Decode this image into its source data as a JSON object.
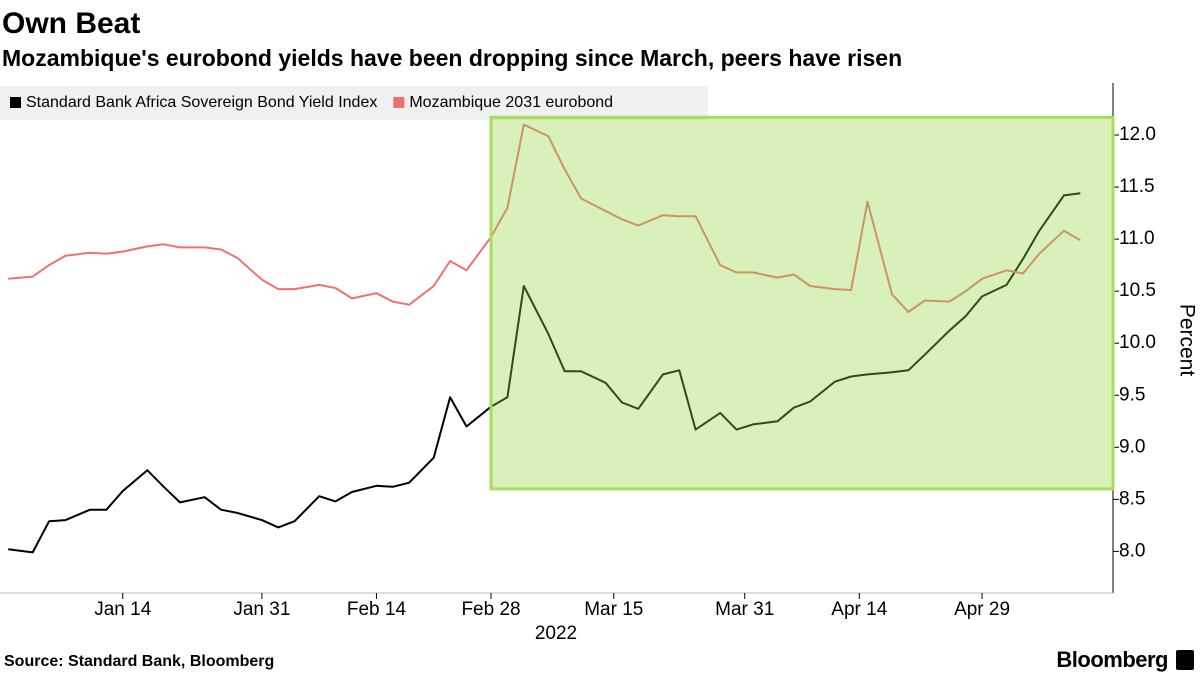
{
  "chart_data": {
    "type": "line",
    "title": "Own Beat",
    "subtitle": "Mozambique's eurobond yields have been dropping since March, peers have risen",
    "source": "Source: Standard Bank, Bloomberg",
    "brand": "Bloomberg",
    "ylabel": "Percent",
    "x_sublabel": "2022",
    "legend": "top-left",
    "x": [
      "2021-12-31",
      "2022-01-03",
      "2022-01-05",
      "2022-01-07",
      "2022-01-10",
      "2022-01-12",
      "2022-01-14",
      "2022-01-17",
      "2022-01-19",
      "2022-01-21",
      "2022-01-24",
      "2022-01-26",
      "2022-01-28",
      "2022-01-31",
      "2022-02-02",
      "2022-02-04",
      "2022-02-07",
      "2022-02-09",
      "2022-02-11",
      "2022-02-14",
      "2022-02-16",
      "2022-02-18",
      "2022-02-21",
      "2022-02-23",
      "2022-02-25",
      "2022-02-28",
      "2022-03-02",
      "2022-03-04",
      "2022-03-07",
      "2022-03-09",
      "2022-03-11",
      "2022-03-14",
      "2022-03-16",
      "2022-03-18",
      "2022-03-21",
      "2022-03-23",
      "2022-03-25",
      "2022-03-28",
      "2022-03-30",
      "2022-04-01",
      "2022-04-04",
      "2022-04-06",
      "2022-04-08",
      "2022-04-11",
      "2022-04-13",
      "2022-04-15",
      "2022-04-18",
      "2022-04-20",
      "2022-04-22",
      "2022-04-25",
      "2022-04-27",
      "2022-04-29",
      "2022-05-02",
      "2022-05-04",
      "2022-05-06",
      "2022-05-09",
      "2022-05-11"
    ],
    "series": [
      {
        "name": "Standard Bank Africa Sovereign Bond Yield Index",
        "color": "#000000",
        "values": [
          8.02,
          7.99,
          8.29,
          8.3,
          8.4,
          8.4,
          8.58,
          8.78,
          8.62,
          8.47,
          8.52,
          8.4,
          8.37,
          8.3,
          8.23,
          8.29,
          8.53,
          8.48,
          8.57,
          8.63,
          8.62,
          8.66,
          8.9,
          9.48,
          9.2,
          9.39,
          9.48,
          10.55,
          10.09,
          9.73,
          9.73,
          9.62,
          9.43,
          9.37,
          9.7,
          9.74,
          9.17,
          9.33,
          9.17,
          9.22,
          9.25,
          9.38,
          9.44,
          9.63,
          9.68,
          9.7,
          9.72,
          9.74,
          9.89,
          10.12,
          10.26,
          10.45,
          10.56,
          10.81,
          11.08,
          11.42,
          11.44
        ]
      },
      {
        "name": "Mozambique 2031 eurobond",
        "color": "#f07070",
        "values": [
          10.62,
          10.64,
          10.75,
          10.84,
          10.87,
          10.86,
          10.88,
          10.93,
          10.95,
          10.92,
          10.92,
          10.9,
          10.82,
          10.61,
          10.52,
          10.52,
          10.56,
          10.53,
          10.43,
          10.48,
          10.4,
          10.37,
          10.55,
          10.79,
          10.7,
          11.02,
          11.3,
          12.1,
          11.99,
          11.67,
          11.39,
          11.27,
          11.19,
          11.13,
          11.23,
          11.22,
          11.22,
          10.75,
          10.68,
          10.68,
          10.63,
          10.66,
          10.55,
          10.52,
          10.51,
          11.36,
          10.47,
          10.3,
          10.41,
          10.4,
          10.5,
          10.62,
          10.7,
          10.67,
          10.86,
          11.08,
          10.99
        ]
      }
    ],
    "xlim": [
      "2021-12-30",
      "2022-05-15"
    ],
    "xticks": [
      {
        "value": "2022-01-14",
        "label": "Jan 14"
      },
      {
        "value": "2022-01-31",
        "label": "Jan 31"
      },
      {
        "value": "2022-02-14",
        "label": "Feb 14"
      },
      {
        "value": "2022-02-28",
        "label": "Feb 28"
      },
      {
        "value": "2022-03-15",
        "label": "Mar 15"
      },
      {
        "value": "2022-03-31",
        "label": "Mar 31"
      },
      {
        "value": "2022-04-14",
        "label": "Apr 14"
      },
      {
        "value": "2022-04-29",
        "label": "Apr 29"
      }
    ],
    "ylim": [
      7.6,
      12.5
    ],
    "yticks": [
      {
        "value": 8,
        "label": "8.0"
      },
      {
        "value": 8.5,
        "label": "8.5"
      },
      {
        "value": 9,
        "label": "9.0"
      },
      {
        "value": 9.5,
        "label": "9.5"
      },
      {
        "value": 10,
        "label": "10.0"
      },
      {
        "value": 10.5,
        "label": "10.5"
      },
      {
        "value": 11,
        "label": "11.0"
      },
      {
        "value": 11.5,
        "label": "11.5"
      },
      {
        "value": 12,
        "label": "12.0"
      }
    ],
    "highlight": {
      "start": "2022-02-28",
      "ylim": [
        8.6,
        12.17
      ],
      "color": "#8fd63f",
      "border": "#a8dc5a"
    }
  }
}
